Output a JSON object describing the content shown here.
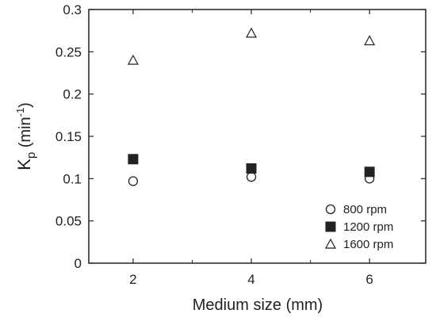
{
  "chart_data": {
    "type": "scatter",
    "title": "",
    "xlabel": "Medium size (mm)",
    "ylabel_main": "K",
    "ylabel_sub": "p",
    "ylabel_unit_open": " (min",
    "ylabel_unit_sup": "-1",
    "ylabel_unit_close": ")",
    "xlim": [
      1.25,
      6.95
    ],
    "ylim": [
      0,
      0.3
    ],
    "x_ticks": [
      2,
      4,
      6
    ],
    "x_tick_labels": [
      "2",
      "4",
      "6"
    ],
    "x_minor_ticks": [
      3,
      5
    ],
    "y_ticks": [
      0,
      0.05,
      0.1,
      0.15,
      0.2,
      0.25,
      0.3
    ],
    "y_tick_labels": [
      "0",
      "0.05",
      "0.1",
      "0.15",
      "0.2",
      "0.25",
      "0.3"
    ],
    "grid": false,
    "legend_position": "bottom-right",
    "series": [
      {
        "name": "800 rpm",
        "marker": "circle-open",
        "x": [
          2,
          4,
          6
        ],
        "y": [
          0.097,
          0.102,
          0.1
        ]
      },
      {
        "name": "1200 rpm",
        "marker": "square-filled",
        "x": [
          2,
          4,
          6
        ],
        "y": [
          0.123,
          0.112,
          0.108
        ]
      },
      {
        "name": "1600 rpm",
        "marker": "triangle-open",
        "x": [
          2,
          4,
          6
        ],
        "y": [
          0.24,
          0.272,
          0.263
        ]
      }
    ],
    "colors": {
      "axis": "#222222",
      "marker": "#222222",
      "background": "#ffffff"
    }
  }
}
